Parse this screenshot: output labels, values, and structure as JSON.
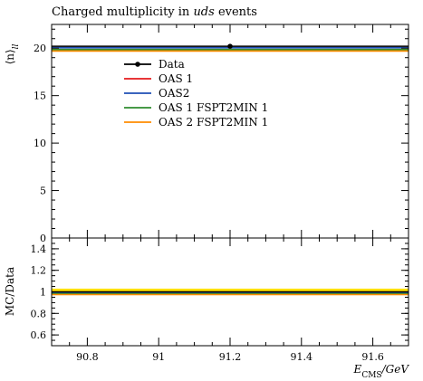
{
  "chart_data": [
    {
      "type": "line",
      "title": "Charged multiplicity in uds events",
      "title_parts": [
        "Charged multiplicity in ",
        "uds",
        " events"
      ],
      "ylabel": "⟨n⟩ll",
      "ylabel_main": "⟨n⟩",
      "ylabel_sub": "ll",
      "xlabel": "",
      "xlim": [
        90.7,
        91.7
      ],
      "ylim": [
        0,
        22.5
      ],
      "yticks": [
        0,
        5,
        10,
        15,
        20
      ],
      "ytick_labels": [
        "0",
        "5",
        "10",
        "15",
        "20"
      ],
      "grid": false,
      "legend_position": "upper-left",
      "data": {
        "name": "Data",
        "x": [
          91.2
        ],
        "y": [
          20.2
        ],
        "color": "#000000"
      },
      "series": [
        {
          "name": "OAS 1",
          "x": [
            90.7,
            91.7
          ],
          "y": [
            19.75,
            19.75
          ],
          "color": "#e41a1c"
        },
        {
          "name": "OAS2",
          "x": [
            90.7,
            91.7
          ],
          "y": [
            20.05,
            20.05
          ],
          "color": "#1f4fb4"
        },
        {
          "name": "OAS 1 FSPT2MIN 1",
          "x": [
            90.7,
            91.7
          ],
          "y": [
            19.85,
            19.85
          ],
          "color": "#2e8b2e"
        },
        {
          "name": "OAS 2 FSPT2MIN 1",
          "x": [
            90.7,
            91.7
          ],
          "y": [
            19.7,
            19.7
          ],
          "color": "#ff8c00"
        }
      ]
    },
    {
      "type": "line",
      "title": "",
      "ylabel": "MC/Data",
      "xlabel": "ECMS/GeV",
      "xlabel_main": "E",
      "xlabel_sub": "CMS",
      "xlabel_unit": "/GeV",
      "xlim": [
        90.7,
        91.7
      ],
      "ylim": [
        0.5,
        1.5
      ],
      "xticks": [
        90.8,
        91.0,
        91.2,
        91.4,
        91.6
      ],
      "xtick_labels": [
        "90.8",
        "91",
        "91.2",
        "91.4",
        "91.6"
      ],
      "yticks": [
        0.6,
        0.8,
        1.0,
        1.2,
        1.4
      ],
      "ytick_labels": [
        "0.6",
        "0.8",
        "1",
        "1.2",
        "1.4"
      ],
      "grid": false,
      "data_band": {
        "low": 0.97,
        "high": 1.03,
        "color": "#ffe000"
      },
      "series": [
        {
          "name": "OAS 1",
          "x": [
            90.7,
            91.7
          ],
          "y": [
            0.978,
            0.978
          ],
          "color": "#e41a1c"
        },
        {
          "name": "OAS2",
          "x": [
            90.7,
            91.7
          ],
          "y": [
            0.993,
            0.993
          ],
          "color": "#1f4fb4"
        },
        {
          "name": "OAS 1 FSPT2MIN 1",
          "x": [
            90.7,
            91.7
          ],
          "y": [
            0.983,
            0.983
          ],
          "color": "#2e8b2e"
        },
        {
          "name": "OAS 2 FSPT2MIN 1",
          "x": [
            90.7,
            91.7
          ],
          "y": [
            0.975,
            0.975
          ],
          "color": "#ff8c00"
        },
        {
          "name": "Data",
          "x": [
            90.7,
            91.7
          ],
          "y": [
            1.0,
            1.0
          ],
          "color": "#000000"
        }
      ]
    }
  ]
}
